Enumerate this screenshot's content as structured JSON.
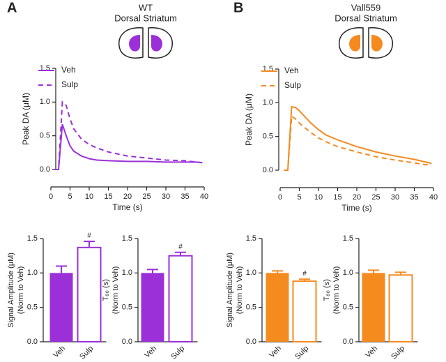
{
  "chart_data": [
    {
      "type": "line",
      "panel": "A",
      "title": "WT",
      "subtitle": "Dorsal Striatum",
      "xlabel": "Time (s)",
      "ylabel": "Peak DA (μM)",
      "x": [
        1,
        2,
        3,
        4,
        5,
        6,
        8,
        10,
        12,
        15,
        20,
        25,
        30,
        35,
        38,
        39.5
      ],
      "series": [
        {
          "name": "Veh",
          "color": "#9b30d9",
          "style": "solid",
          "values": [
            0,
            0,
            0.67,
            0.5,
            0.35,
            0.27,
            0.2,
            0.16,
            0.14,
            0.13,
            0.12,
            0.12,
            0.11,
            0.11,
            0.11,
            0.1
          ]
        },
        {
          "name": "Sulp",
          "color": "#9b30d9",
          "style": "dashed",
          "values": [
            0,
            0,
            1.0,
            0.95,
            0.75,
            0.6,
            0.45,
            0.37,
            0.32,
            0.26,
            0.2,
            0.17,
            0.14,
            0.13,
            0.11,
            0.1
          ]
        }
      ],
      "xlim": [
        0,
        40
      ],
      "xticks": [
        0,
        5,
        10,
        15,
        20,
        25,
        30,
        35,
        40
      ],
      "ylim": [
        0,
        1.5
      ],
      "yticks": [
        {
          "value": 0,
          "label": "0.0"
        },
        0.5,
        {
          "value": 1,
          "label": "1.0"
        },
        1.5
      ],
      "legend": "upper left"
    },
    {
      "type": "bar",
      "ylabel": [
        "Signal Amplitude (μM)",
        "(Norm to Veh)"
      ],
      "categories": [
        "Veh",
        "Sulp"
      ],
      "values": [
        1.0,
        1.37
      ],
      "errors": [
        0.1,
        0.09
      ],
      "color": "#9b30d9",
      "fill": [
        "solid",
        "open"
      ],
      "annotations": [
        {
          "x": "Sulp",
          "text": "#"
        }
      ],
      "ylim": [
        0,
        1.5
      ],
      "yticks": [
        {
          "value": 0,
          "label": "0.0"
        },
        0.5,
        {
          "value": 1,
          "label": "1.0"
        },
        1.5
      ]
    },
    {
      "type": "bar",
      "ylabel": [
        "T₈₀ (s)",
        "(Norm to Veh)"
      ],
      "categories": [
        "Veh",
        "Sulp"
      ],
      "values": [
        1.0,
        1.25
      ],
      "errors": [
        0.05,
        0.05
      ],
      "color": "#9b30d9",
      "fill": [
        "solid",
        "open"
      ],
      "annotations": [
        {
          "x": "Sulp",
          "text": "#"
        }
      ],
      "ylim": [
        0,
        1.5
      ],
      "yticks": [
        {
          "value": 0,
          "label": "0.0"
        },
        0.5,
        {
          "value": 1,
          "label": "1.0"
        },
        1.5
      ]
    },
    {
      "type": "line",
      "panel": "B",
      "title": "Vall559",
      "subtitle": "Dorsal Striatum",
      "xlabel": "Time (s)",
      "ylabel": "Peak DA (μM)",
      "x": [
        1,
        2,
        3,
        4,
        5,
        6,
        8,
        10,
        12,
        15,
        20,
        25,
        30,
        35,
        38,
        39.5
      ],
      "series": [
        {
          "name": "Veh",
          "color": "#f58a1f",
          "style": "solid",
          "values": [
            0,
            0,
            0.94,
            0.93,
            0.88,
            0.82,
            0.7,
            0.6,
            0.52,
            0.45,
            0.35,
            0.27,
            0.21,
            0.16,
            0.12,
            0.1
          ]
        },
        {
          "name": "Sulp",
          "color": "#f58a1f",
          "style": "dashed",
          "values": [
            0,
            0,
            0.8,
            0.76,
            0.7,
            0.65,
            0.56,
            0.48,
            0.42,
            0.35,
            0.27,
            0.2,
            0.15,
            0.11,
            0.08,
            0.1
          ]
        }
      ],
      "xlim": [
        0,
        40
      ],
      "xticks": [
        0,
        5,
        10,
        15,
        20,
        25,
        30,
        35,
        40
      ],
      "ylim": [
        0,
        1.5
      ],
      "yticks": [
        {
          "value": 0,
          "label": "0.0"
        },
        0.5,
        {
          "value": 1,
          "label": "1.0"
        },
        1.5
      ],
      "legend": "upper left"
    },
    {
      "type": "bar",
      "ylabel": [
        "Signal Amplitude (μM)",
        "(Norm to Veh)"
      ],
      "categories": [
        "Veh",
        "Sulp"
      ],
      "values": [
        1.0,
        0.88
      ],
      "errors": [
        0.03,
        0.03
      ],
      "color": "#f58a1f",
      "fill": [
        "solid",
        "open"
      ],
      "annotations": [
        {
          "x": "Sulp",
          "text": "#"
        }
      ],
      "ylim": [
        0,
        1.5
      ],
      "yticks": [
        {
          "value": 0,
          "label": "0.0"
        },
        0.5,
        {
          "value": 1,
          "label": "1.0"
        },
        1.5
      ]
    },
    {
      "type": "bar",
      "ylabel": [
        "T₈₀ (s)",
        "(Norm to Veh)"
      ],
      "categories": [
        "Veh",
        "Sulp"
      ],
      "values": [
        1.0,
        0.97
      ],
      "errors": [
        0.04,
        0.04
      ],
      "color": "#f58a1f",
      "fill": [
        "solid",
        "open"
      ],
      "ylim": [
        0,
        1.5
      ],
      "yticks": [
        {
          "value": 0,
          "label": "0.0"
        },
        0.5,
        {
          "value": 1,
          "label": "1.0"
        },
        1.5
      ]
    }
  ]
}
